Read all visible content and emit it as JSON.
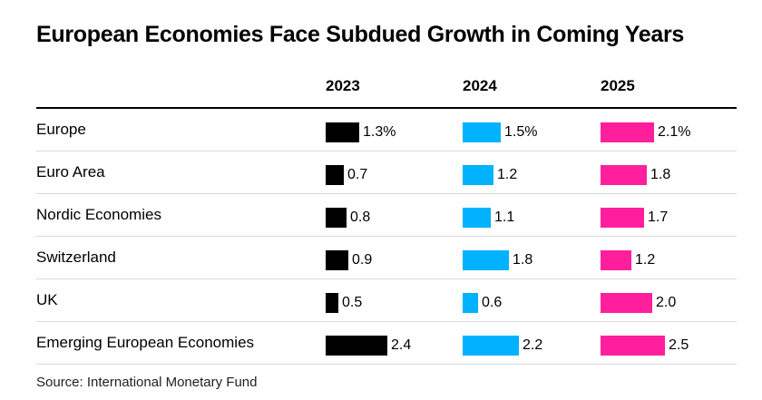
{
  "title": "European Economies Face Subdued Growth in Coming Years",
  "source": "Source: International Monetary Fund",
  "chart_data": {
    "type": "table",
    "title": "European Economies Face Subdued Growth in Coming Years",
    "columns": [
      "2023",
      "2024",
      "2025"
    ],
    "colors": [
      "#000000",
      "#00b2ff",
      "#ff1f9d"
    ],
    "rows": [
      {
        "label": "Europe",
        "values": [
          1.3,
          1.5,
          2.1
        ],
        "display": [
          "1.3%",
          "1.5%",
          "2.1%"
        ]
      },
      {
        "label": "Euro Area",
        "values": [
          0.7,
          1.2,
          1.8
        ],
        "display": [
          "0.7",
          "1.2",
          "1.8"
        ]
      },
      {
        "label": "Nordic Economies",
        "values": [
          0.8,
          1.1,
          1.7
        ],
        "display": [
          "0.8",
          "1.1",
          "1.7"
        ]
      },
      {
        "label": "Switzerland",
        "values": [
          0.9,
          1.8,
          1.2
        ],
        "display": [
          "0.9",
          "1.8",
          "1.2"
        ]
      },
      {
        "label": "UK",
        "values": [
          0.5,
          0.6,
          2.0
        ],
        "display": [
          "0.5",
          "0.6",
          "2.0"
        ]
      },
      {
        "label": "Emerging European Economies",
        "values": [
          2.4,
          2.2,
          2.5
        ],
        "display": [
          "2.4",
          "2.2",
          "2.5"
        ]
      }
    ]
  }
}
